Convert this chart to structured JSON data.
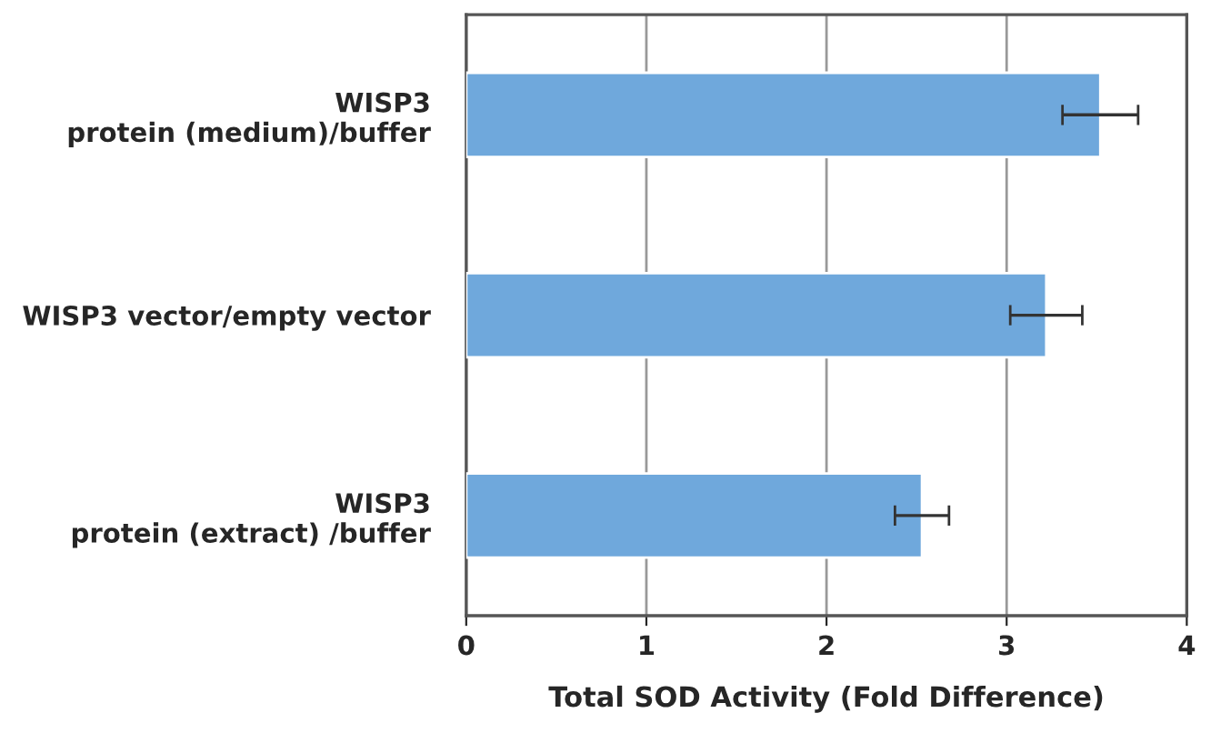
{
  "chart_data": {
    "type": "bar",
    "orientation": "horizontal",
    "categories": [
      "WISP3\nprotein (medium)/buffer",
      "WISP3 vector/empty vector",
      "WISP3\nprotein (extract) /buffer"
    ],
    "values": [
      3.52,
      3.22,
      2.53
    ],
    "errors": [
      0.21,
      0.2,
      0.15
    ],
    "color": "#6fa8dc",
    "xlabel": "Total SOD Activity (Fold Difference)",
    "xlim": [
      0,
      4
    ],
    "xticks": [
      0,
      1,
      2,
      3,
      4
    ],
    "grid": "x"
  }
}
